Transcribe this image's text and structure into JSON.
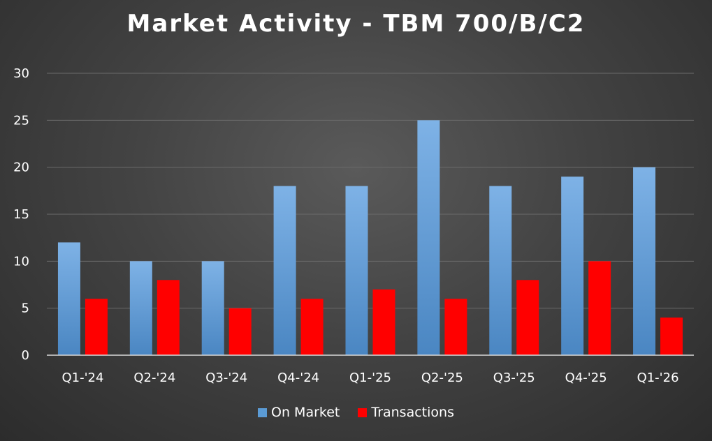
{
  "chart_data": {
    "type": "bar",
    "title": "Market Activity - TBM 700/B/C2",
    "categories": [
      "Q1-'24",
      "Q2-'24",
      "Q3-'24",
      "Q4-'24",
      "Q1-'25",
      "Q2-'25",
      "Q3-'25",
      "Q4-'25",
      "Q1-'26"
    ],
    "series": [
      {
        "name": "On Market",
        "values": [
          12,
          10,
          10,
          18,
          18,
          25,
          18,
          19,
          20
        ],
        "color": "#5b9bd5"
      },
      {
        "name": "Transactions",
        "values": [
          6,
          8,
          5,
          6,
          7,
          6,
          8,
          10,
          4
        ],
        "color": "#ff0000"
      }
    ],
    "xlabel": "",
    "ylabel": "",
    "ylim": [
      0,
      30
    ],
    "yticks": [
      "0",
      "5",
      "10",
      "15",
      "20",
      "25",
      "30"
    ],
    "grid": true,
    "legend_position": "bottom",
    "colors": {
      "background": "#434343",
      "gridline": "#6b6b6b",
      "axis": "#d9d9d9",
      "text": "#ffffff"
    }
  }
}
